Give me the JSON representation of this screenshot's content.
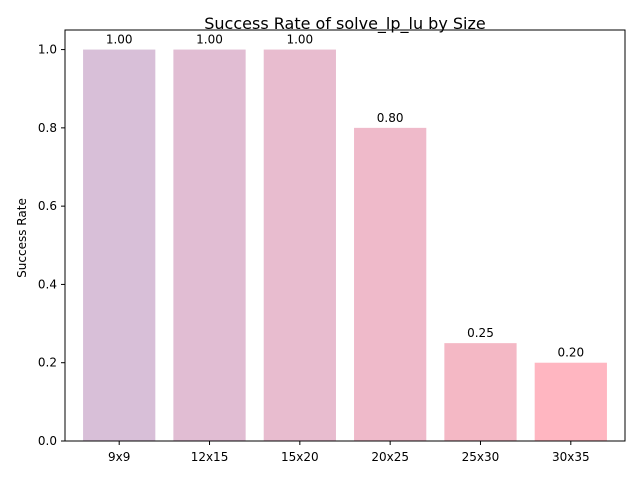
{
  "chart_data": {
    "type": "bar",
    "title": "Success Rate of solve_lp_lu by Size",
    "xlabel": "",
    "ylabel": "Success Rate",
    "categories": [
      "9x9",
      "12x15",
      "15x20",
      "20x25",
      "25x30",
      "30x35"
    ],
    "values": [
      1.0,
      1.0,
      1.0,
      0.8,
      0.25,
      0.2
    ],
    "value_labels": [
      "1.00",
      "1.00",
      "1.00",
      "0.80",
      "0.25",
      "0.20"
    ],
    "bar_colors": [
      "#d8bfd8",
      "#e1bdd3",
      "#e8bccf",
      "#efbaca",
      "#f4b8c5",
      "#ffb6c1"
    ],
    "ylim": [
      0,
      1.05
    ],
    "yticks": [
      0.0,
      0.2,
      0.4,
      0.6,
      0.8,
      1.0
    ],
    "ytick_labels": [
      "0.0",
      "0.2",
      "0.4",
      "0.6",
      "0.8",
      "1.0"
    ],
    "grid": false,
    "legend": "none"
  }
}
